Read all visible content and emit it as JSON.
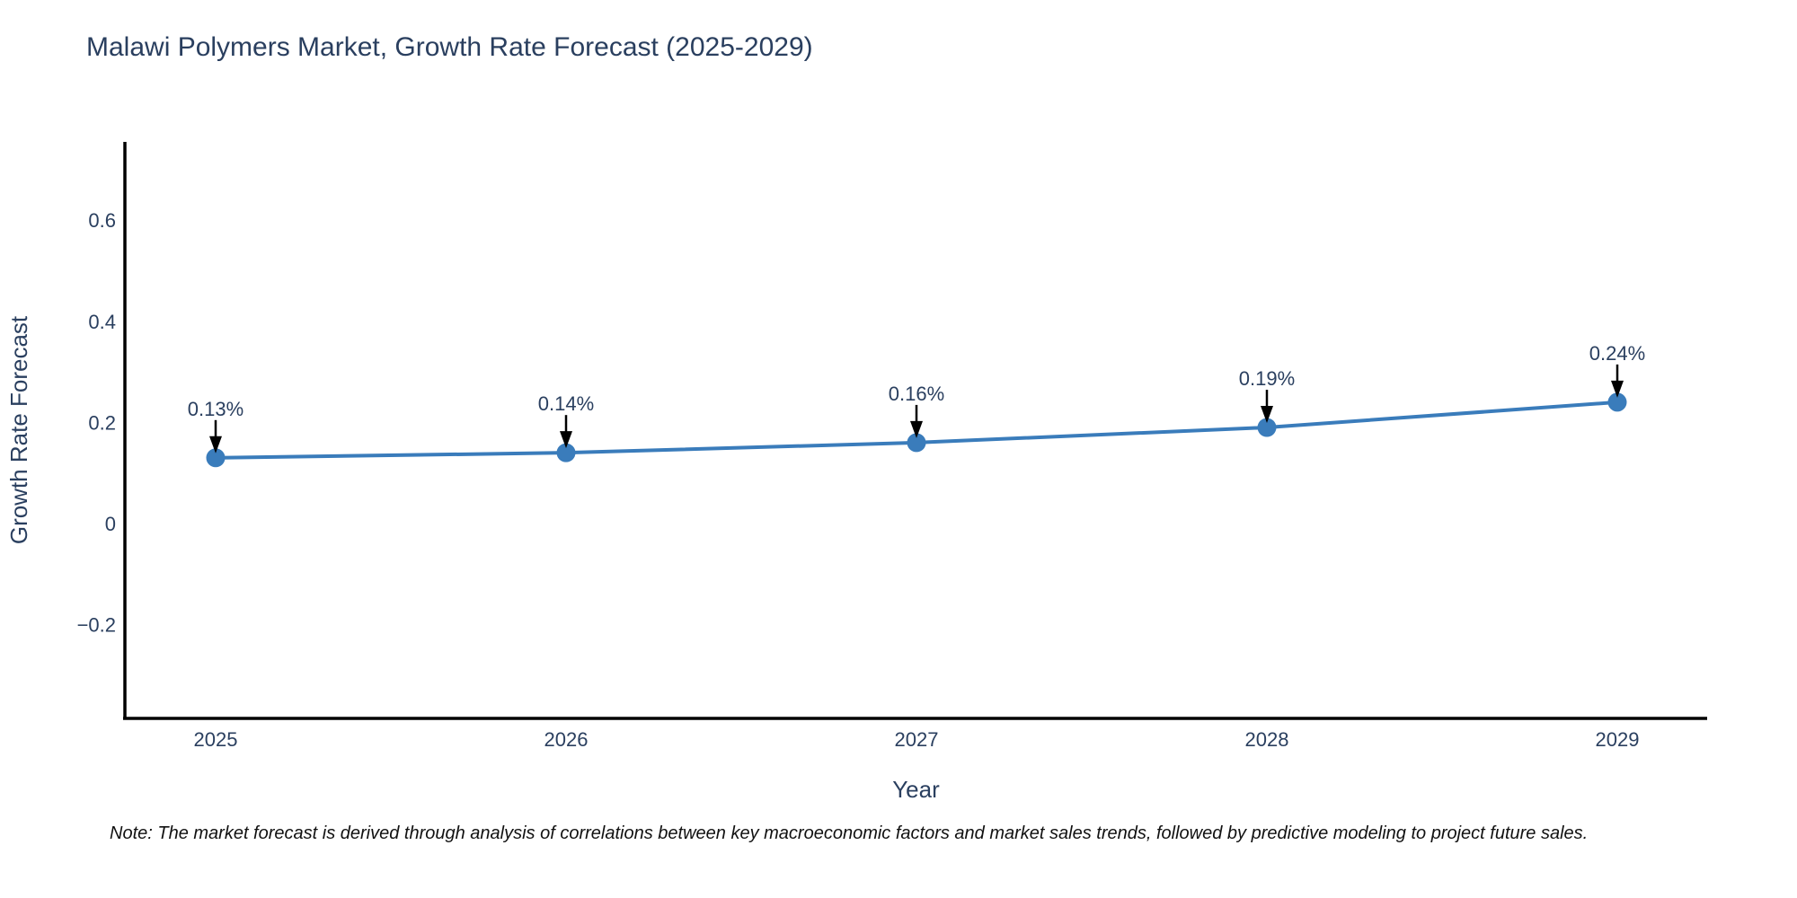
{
  "title": "Malawi Polymers Market, Growth Rate Forecast (2025-2029)",
  "note": "Note: The market forecast is derived through analysis of correlations between key macroeconomic factors and market sales trends, followed by predictive modeling to project future sales.",
  "chart_data": {
    "type": "line",
    "title": "Malawi Polymers Market, Growth Rate Forecast (2025-2029)",
    "xlabel": "Year",
    "ylabel": "Growth Rate Forecast",
    "x": [
      2025,
      2026,
      2027,
      2028,
      2029
    ],
    "series": [
      {
        "name": "Growth Rate Forecast",
        "values": [
          0.13,
          0.14,
          0.16,
          0.19,
          0.24
        ]
      }
    ],
    "point_labels": [
      "0.13%",
      "0.14%",
      "0.16%",
      "0.19%",
      "0.24%"
    ],
    "xtick_labels": [
      "2025",
      "2026",
      "2027",
      "2028",
      "2029"
    ],
    "ytick_values": [
      -0.2,
      0,
      0.2,
      0.4,
      0.6
    ],
    "ytick_labels": [
      "−0.2",
      "0",
      "0.2",
      "0.4",
      "0.6"
    ],
    "ylim": [
      -0.4,
      0.75
    ],
    "grid": false,
    "legend_position": "none",
    "line_color": "#3a7cbb",
    "marker_color": "#3a7cbb",
    "annotation_arrow_color": "#000000",
    "axis_color": "#000000",
    "text_color": "#2a3f5f"
  }
}
